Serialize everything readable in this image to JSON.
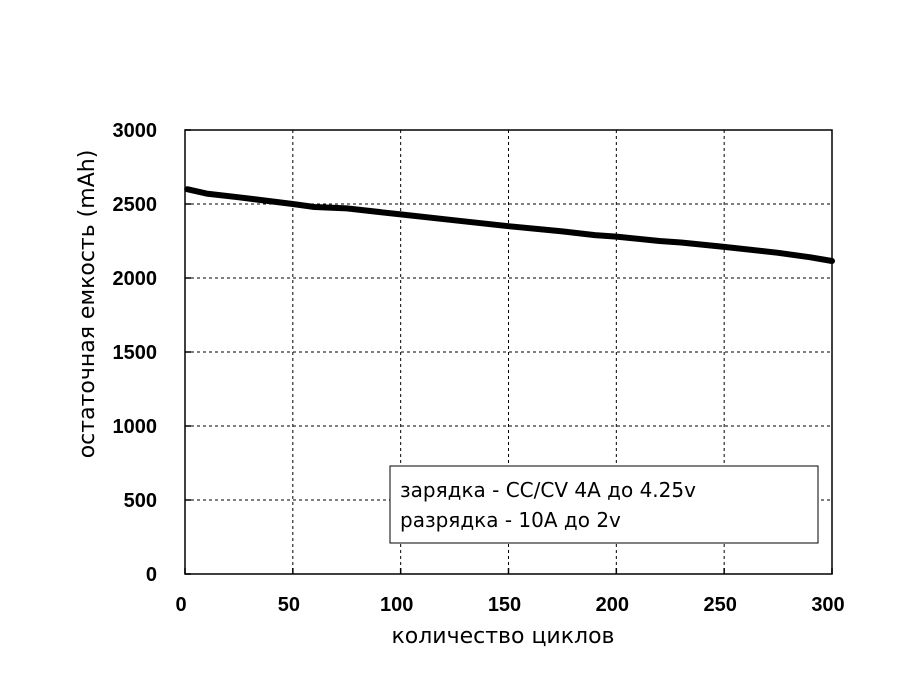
{
  "chart_data": {
    "type": "line",
    "xlabel": "количество циклов",
    "ylabel": "остаточная емкость (mAh)",
    "xlim": [
      0,
      300
    ],
    "ylim": [
      0,
      3000
    ],
    "x_ticks": [
      "0",
      "50",
      "100",
      "150",
      "200",
      "250",
      "300"
    ],
    "y_ticks": [
      "0",
      "500",
      "1000",
      "1500",
      "2000",
      "2500",
      "3000"
    ],
    "grid": true,
    "grid_style": "dotted",
    "legend_placement": "bottom-right",
    "annotation_lines": [
      "зарядка - CC/CV 4A до 4.25v",
      "разрядка - 10A до 2v"
    ],
    "series": [
      {
        "color": "#000000",
        "x": [
          1,
          10,
          25,
          50,
          60,
          75,
          100,
          125,
          150,
          175,
          190,
          200,
          220,
          230,
          250,
          275,
          290,
          300
        ],
        "y": [
          2600,
          2570,
          2545,
          2500,
          2480,
          2470,
          2430,
          2390,
          2350,
          2315,
          2290,
          2280,
          2250,
          2240,
          2210,
          2170,
          2140,
          2115
        ]
      }
    ]
  }
}
